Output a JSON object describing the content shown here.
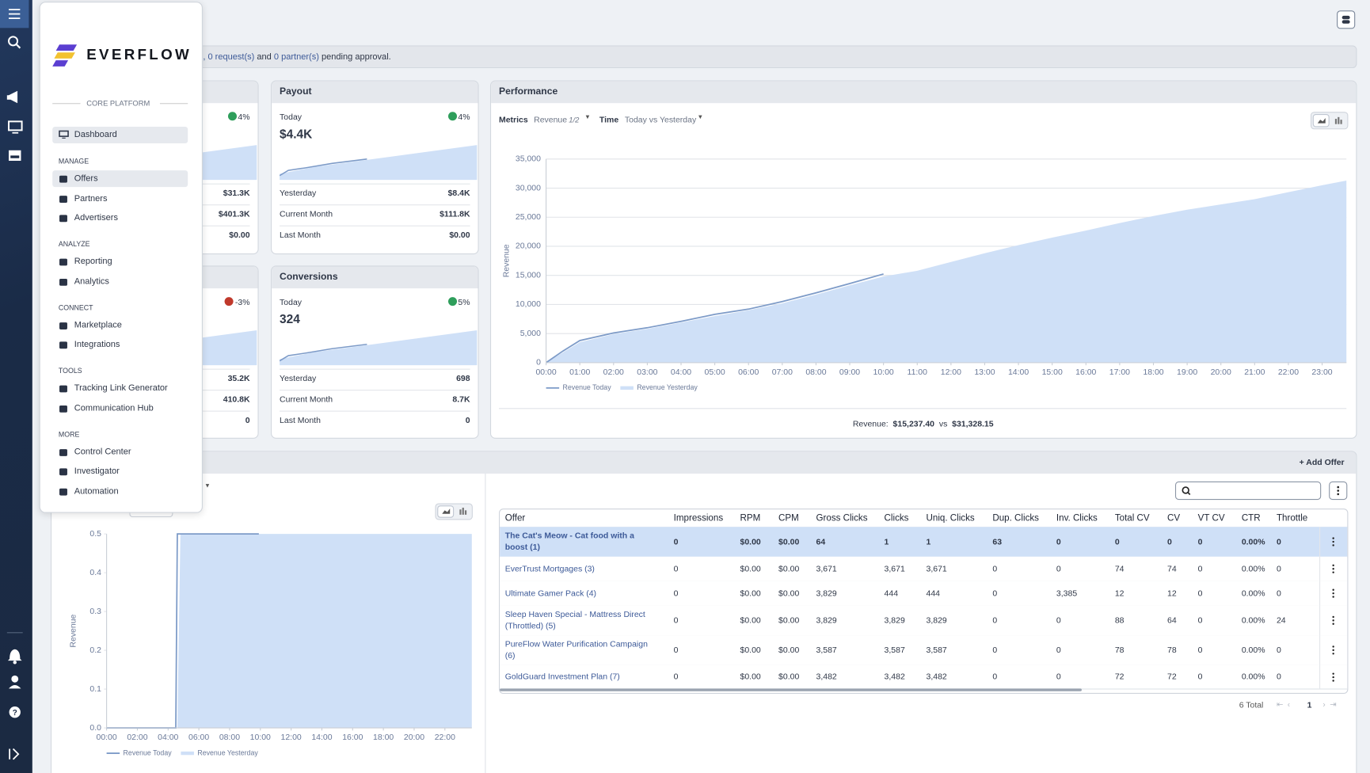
{
  "banner": {
    "prefix": "),",
    "requests": "0 request(s)",
    "and": "and",
    "partners": "0 partner(s)",
    "suffix": "pending approval."
  },
  "menu": {
    "logo": "EVERFLOW",
    "section": "CORE PLATFORM",
    "dashboard": "Dashboard",
    "groups": [
      {
        "title": "MANAGE",
        "items": [
          "Offers",
          "Partners",
          "Advertisers"
        ]
      },
      {
        "title": "ANALYZE",
        "items": [
          "Reporting",
          "Analytics"
        ]
      },
      {
        "title": "CONNECT",
        "items": [
          "Marketplace",
          "Integrations"
        ]
      },
      {
        "title": "TOOLS",
        "items": [
          "Tracking Link Generator",
          "Communication Hub"
        ]
      },
      {
        "title": "MORE",
        "items": [
          "Control Center",
          "Investigator",
          "Automation"
        ]
      }
    ]
  },
  "cards": {
    "left_top": {
      "change": "4%",
      "rows": [
        "$31.3K",
        "$401.3K",
        "$0.00"
      ]
    },
    "payout": {
      "title": "Payout",
      "today_label": "Today",
      "change": "4%",
      "today": "$4.4K",
      "rows": [
        {
          "label": "Yesterday",
          "value": "$8.4K"
        },
        {
          "label": "Current Month",
          "value": "$111.8K"
        },
        {
          "label": "Last Month",
          "value": "$0.00"
        }
      ]
    },
    "left_bottom": {
      "change": "-3%",
      "rows": [
        "35.2K",
        "410.8K",
        "0"
      ]
    },
    "conversions": {
      "title": "Conversions",
      "today_label": "Today",
      "change": "5%",
      "today": "324",
      "rows": [
        {
          "label": "Yesterday",
          "value": "698"
        },
        {
          "label": "Current Month",
          "value": "8.7K"
        },
        {
          "label": "Last Month",
          "value": "0"
        }
      ]
    }
  },
  "performance": {
    "title": "Performance",
    "metrics_label": "Metrics",
    "metric": "Revenue",
    "metric_count": "1/2",
    "time_label": "Time",
    "time": "Today vs Yesterday",
    "summary_label": "Revenue:",
    "today_total": "$15,237.40",
    "vs": "vs",
    "yesterday_total": "$31,328.15"
  },
  "offers": {
    "add": "+ Add Offer",
    "total": "6 Total",
    "page": "1",
    "table": {
      "columns": [
        "Offer",
        "Impressions",
        "RPM",
        "CPM",
        "Gross Clicks",
        "Clicks",
        "Uniq. Clicks",
        "Dup. Clicks",
        "Inv. Clicks",
        "Total CV",
        "CV",
        "VT CV",
        "CTR",
        "Throttle"
      ],
      "rows": [
        [
          "The Cat's Meow - Cat food with a boost (1)",
          "0",
          "$0.00",
          "$0.00",
          "64",
          "1",
          "1",
          "63",
          "0",
          "0",
          "0",
          "0",
          "0.00%",
          "0"
        ],
        [
          "EverTrust Mortgages (3)",
          "0",
          "$0.00",
          "$0.00",
          "3,671",
          "3,671",
          "3,671",
          "0",
          "0",
          "74",
          "74",
          "0",
          "0.00%",
          "0"
        ],
        [
          "Ultimate Gamer Pack (4)",
          "0",
          "$0.00",
          "$0.00",
          "3,829",
          "444",
          "444",
          "0",
          "3,385",
          "12",
          "12",
          "0",
          "0.00%",
          "0"
        ],
        [
          "Sleep Haven Special - Mattress Direct (Throttled) (5)",
          "0",
          "$0.00",
          "$0.00",
          "3,829",
          "3,829",
          "3,829",
          "0",
          "0",
          "88",
          "64",
          "0",
          "0.00%",
          "24"
        ],
        [
          "PureFlow Water Purification Campaign (6)",
          "0",
          "$0.00",
          "$0.00",
          "3,587",
          "3,587",
          "3,587",
          "0",
          "0",
          "78",
          "78",
          "0",
          "0.00%",
          "0"
        ],
        [
          "GoldGuard Investment Plan (7)",
          "0",
          "$0.00",
          "$0.00",
          "3,482",
          "3,482",
          "3,482",
          "0",
          "0",
          "72",
          "72",
          "0",
          "0.00%",
          "0"
        ]
      ]
    }
  },
  "chart_data": [
    {
      "type": "line",
      "y_label": "Revenue",
      "grid": true,
      "xlim": [
        0,
        23.72
      ],
      "ylim": [
        0,
        35000
      ],
      "xticks": [
        {
          "value": 0,
          "label": "00:00"
        },
        {
          "value": 1,
          "label": "01:00"
        },
        {
          "value": 2,
          "label": "02:00"
        },
        {
          "value": 3,
          "label": "03:00"
        },
        {
          "value": 4,
          "label": "04:00"
        },
        {
          "value": 5,
          "label": "05:00"
        },
        {
          "value": 6,
          "label": "06:00"
        },
        {
          "value": 7,
          "label": "07:00"
        },
        {
          "value": 8,
          "label": "08:00"
        },
        {
          "value": 9,
          "label": "09:00"
        },
        {
          "value": 10,
          "label": "10:00"
        },
        {
          "value": 11,
          "label": "11:00"
        },
        {
          "value": 12,
          "label": "12:00"
        },
        {
          "value": 13,
          "label": "13:00"
        },
        {
          "value": 14,
          "label": "14:00"
        },
        {
          "value": 15,
          "label": "15:00"
        },
        {
          "value": 16,
          "label": "16:00"
        },
        {
          "value": 17,
          "label": "17:00"
        },
        {
          "value": 18,
          "label": "18:00"
        },
        {
          "value": 19,
          "label": "19:00"
        },
        {
          "value": 20,
          "label": "20:00"
        },
        {
          "value": 21,
          "label": "21:00"
        },
        {
          "value": 22,
          "label": "22:00"
        },
        {
          "value": 23,
          "label": "23:00"
        }
      ],
      "yticks": [
        0,
        {
          "value": 5000,
          "label": "5,000"
        },
        {
          "value": 10000,
          "label": "10,000"
        },
        {
          "value": 15000,
          "label": "15,000"
        },
        {
          "value": 20000,
          "label": "20,000"
        },
        {
          "value": 25000,
          "label": "25,000"
        },
        {
          "value": 30000,
          "label": "30,000"
        },
        {
          "value": 35000,
          "label": "35,000"
        }
      ],
      "series": [
        {
          "name": "Revenue Today",
          "color": "#7d9bc8",
          "fill": false,
          "x": [
            0,
            0.5,
            1,
            2,
            3,
            4,
            5,
            6,
            7,
            8,
            9,
            10
          ],
          "values": [
            0,
            2000,
            3800,
            5100,
            6000,
            7100,
            8300,
            9200,
            10500,
            12000,
            13600,
            15237
          ]
        },
        {
          "name": "Revenue Yesterday",
          "color": "#cfe0f7",
          "fill": true,
          "x": [
            0,
            1,
            2,
            3,
            4,
            5,
            6,
            7,
            8,
            9,
            10,
            11,
            12,
            13,
            14,
            15,
            16,
            17,
            18,
            19,
            20,
            21,
            22,
            23,
            23.72
          ],
          "values": [
            0,
            3500,
            4900,
            5800,
            6900,
            8000,
            9000,
            10200,
            11700,
            13300,
            14800,
            15800,
            17300,
            18800,
            20200,
            21500,
            22700,
            24000,
            25200,
            26300,
            27200,
            28100,
            29300,
            30500,
            31300
          ]
        }
      ]
    },
    {
      "type": "line",
      "y_label": "Revenue",
      "grid": false,
      "xlim": [
        0,
        23.75
      ],
      "ylim": [
        0,
        0.5
      ],
      "xticks": [
        {
          "value": 0,
          "label": "00:00"
        },
        {
          "value": 2,
          "label": "02:00"
        },
        {
          "value": 4,
          "label": "04:00"
        },
        {
          "value": 6,
          "label": "06:00"
        },
        {
          "value": 8,
          "label": "08:00"
        },
        {
          "value": 10,
          "label": "10:00"
        },
        {
          "value": 12,
          "label": "12:00"
        },
        {
          "value": 14,
          "label": "14:00"
        },
        {
          "value": 16,
          "label": "16:00"
        },
        {
          "value": 18,
          "label": "18:00"
        },
        {
          "value": 20,
          "label": "20:00"
        },
        {
          "value": 22,
          "label": "22:00"
        }
      ],
      "yticks": [
        {
          "value": 0,
          "label": "0.0"
        },
        0.1,
        0.2,
        0.3,
        0.4,
        0.5
      ],
      "series": [
        {
          "name": "Revenue Today",
          "color": "#7d9bc8",
          "fill": false,
          "x": [
            0,
            4.5,
            4.6,
            9.9
          ],
          "values": [
            0,
            0,
            0.5,
            0.5
          ]
        },
        {
          "name": "Revenue Yesterday",
          "color": "#cfe0f7",
          "fill": true,
          "x": [
            0,
            4.6,
            4.8,
            23.75
          ],
          "values": [
            0,
            0,
            0.5,
            0.5
          ]
        }
      ]
    }
  ]
}
